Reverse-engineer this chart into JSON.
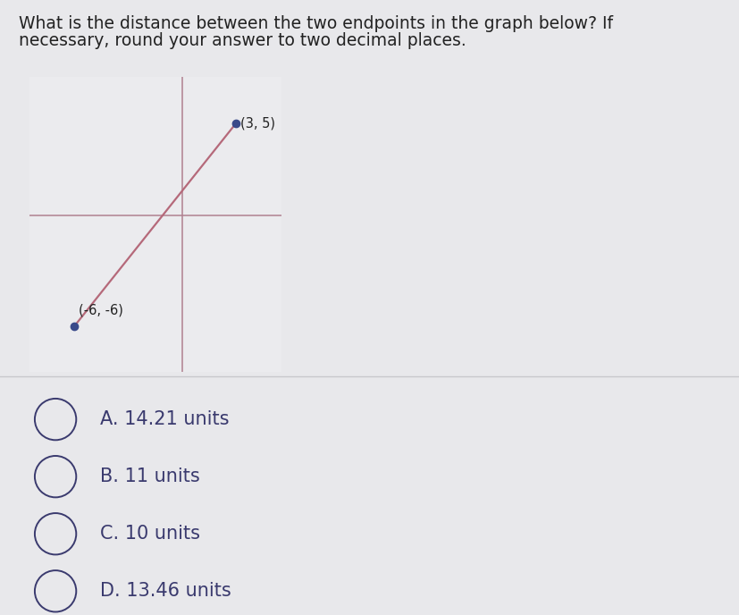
{
  "question_text_line1": "What is the distance between the two endpoints in the graph below? If",
  "question_text_line2": "necessary, round your answer to two decimal places.",
  "point1": [
    3,
    5
  ],
  "point2": [
    -6,
    -6
  ],
  "point1_label": "(3, 5)",
  "point2_label": "(-6, -6)",
  "line_color": "#b5697a",
  "axis_color": "#b08090",
  "point_color": "#3a4a8a",
  "bg_color": "#e8e8eb",
  "choices": [
    {
      "letter": "A.",
      "text": "14.21 units"
    },
    {
      "letter": "B.",
      "text": "11 units"
    },
    {
      "letter": "C.",
      "text": "10 units"
    },
    {
      "letter": "D.",
      "text": "13.46 units"
    }
  ],
  "choice_text_color": "#3a3a6e",
  "question_text_color": "#222222",
  "graph_xlim": [
    -8.5,
    5.5
  ],
  "graph_ylim": [
    -8.5,
    7.5
  ],
  "graph_bg_color": "#ebebee",
  "divider_color": "#c8c8cc",
  "font_size_question": 13.5,
  "font_size_choices": 15,
  "font_size_labels": 10.5
}
